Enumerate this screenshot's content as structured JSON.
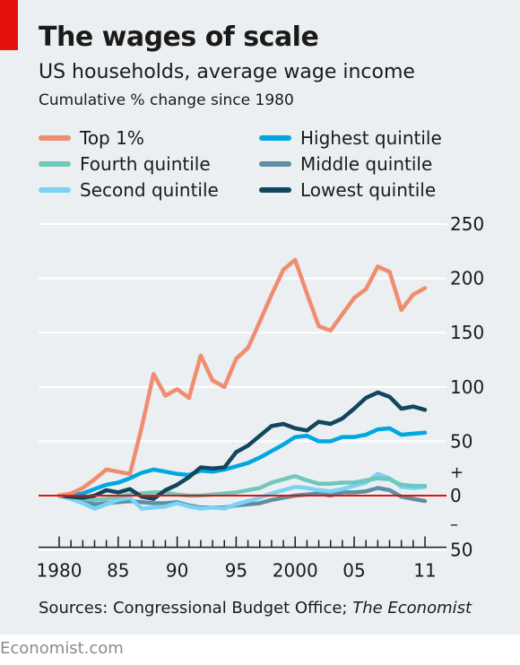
{
  "header": {
    "title": "The wages of scale",
    "subtitle": "US households, average wage income",
    "unit": "Cumulative % change since 1980"
  },
  "footer": {
    "source_prefix": "Sources: Congressional Budget Office; ",
    "source_italic": "The Economist",
    "brand": "Economist.com"
  },
  "colors": {
    "background": "#ebeff1",
    "accent_red": "#e3120b",
    "gridline": "#ffffff",
    "zero_line": "#e3120b"
  },
  "chart_data": {
    "type": "line",
    "title": "The wages of scale",
    "subtitle": "US households, average wage income",
    "ylabel": "Cumulative % change since 1980",
    "xlim": [
      1980,
      2011
    ],
    "ylim": [
      -50,
      250
    ],
    "y_ticks": [
      {
        "value": 250,
        "label": "250"
      },
      {
        "value": 200,
        "label": "200"
      },
      {
        "value": 150,
        "label": "150"
      },
      {
        "value": 100,
        "label": "100"
      },
      {
        "value": 50,
        "label": "50"
      },
      {
        "value": 0,
        "label": "0"
      },
      {
        "value": -50,
        "label": "50"
      }
    ],
    "sign_labels": {
      "plus": "+",
      "minus": "–"
    },
    "x_labels": [
      {
        "value": 1980,
        "label": "1980"
      },
      {
        "value": 1985,
        "label": "85"
      },
      {
        "value": 1990,
        "label": "90"
      },
      {
        "value": 1995,
        "label": "95"
      },
      {
        "value": 2000,
        "label": "2000"
      },
      {
        "value": 2005,
        "label": "05"
      },
      {
        "value": 2011,
        "label": "11"
      }
    ],
    "grid": true,
    "legend_position": "top",
    "x": [
      1980,
      1981,
      1982,
      1983,
      1984,
      1985,
      1986,
      1987,
      1988,
      1989,
      1990,
      1991,
      1992,
      1993,
      1994,
      1995,
      1996,
      1997,
      1998,
      1999,
      2000,
      2001,
      2002,
      2003,
      2004,
      2005,
      2006,
      2007,
      2008,
      2009,
      2010,
      2011
    ],
    "series": [
      {
        "name": "Top 1%",
        "color": "#f08c70",
        "values": [
          0,
          2,
          7,
          15,
          24,
          22,
          20,
          63,
          112,
          92,
          98,
          90,
          129,
          106,
          100,
          126,
          136,
          160,
          185,
          208,
          217,
          186,
          156,
          152,
          167,
          182,
          190,
          211,
          206,
          171,
          185,
          191
        ]
      },
      {
        "name": "Highest quintile",
        "color": "#00a7e1",
        "values": [
          0,
          0,
          2,
          6,
          10,
          12,
          16,
          21,
          24,
          22,
          20,
          19,
          23,
          22,
          24,
          27,
          30,
          35,
          41,
          47,
          54,
          55,
          50,
          50,
          54,
          54,
          56,
          61,
          62,
          56,
          57,
          58
        ]
      },
      {
        "name": "Fourth quintile",
        "color": "#6fc7bd",
        "values": [
          0,
          -1,
          -3,
          -4,
          -3,
          -1,
          1,
          2,
          3,
          3,
          1,
          0,
          0,
          1,
          2,
          3,
          5,
          7,
          12,
          15,
          18,
          14,
          11,
          11,
          12,
          12,
          14,
          16,
          15,
          10,
          9,
          9
        ]
      },
      {
        "name": "Middle quintile",
        "color": "#5f8ea2",
        "values": [
          0,
          -2,
          -5,
          -8,
          -7,
          -6,
          -5,
          -6,
          -7,
          -7,
          -6,
          -9,
          -11,
          -11,
          -11,
          -9,
          -8,
          -7,
          -4,
          -2,
          0,
          1,
          2,
          0,
          3,
          3,
          4,
          7,
          5,
          -1,
          -3,
          -5
        ]
      },
      {
        "name": "Second quintile",
        "color": "#7ad2f6",
        "values": [
          0,
          -3,
          -7,
          -12,
          -8,
          -4,
          -2,
          -12,
          -11,
          -10,
          -7,
          -10,
          -12,
          -11,
          -12,
          -8,
          -5,
          -2,
          2,
          5,
          8,
          7,
          5,
          4,
          6,
          9,
          12,
          20,
          16,
          8,
          7,
          8
        ]
      },
      {
        "name": "Lowest quintile",
        "color": "#10465e",
        "values": [
          0,
          -1,
          -2,
          0,
          5,
          3,
          6,
          -1,
          -3,
          5,
          10,
          17,
          26,
          25,
          26,
          40,
          46,
          55,
          64,
          66,
          62,
          60,
          68,
          66,
          71,
          80,
          90,
          95,
          91,
          80,
          82,
          79
        ]
      }
    ]
  }
}
